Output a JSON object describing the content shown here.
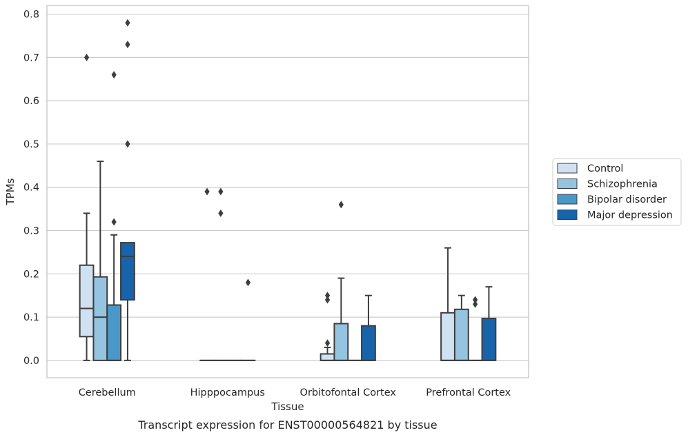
{
  "chart_data": {
    "type": "box",
    "caption": "Transcript expression for ENST00000564821 by tissue",
    "xlabel": "Tissue",
    "ylabel": "TPMs",
    "ylim": [
      -0.04,
      0.82
    ],
    "yticks": [
      0.0,
      0.1,
      0.2,
      0.3,
      0.4,
      0.5,
      0.6,
      0.7,
      0.8
    ],
    "ytick_labels": [
      "0.0",
      "0.1",
      "0.2",
      "0.3",
      "0.4",
      "0.5",
      "0.6",
      "0.7",
      "0.8"
    ],
    "grid": "horizontal",
    "legend_position": "right",
    "categories": [
      "Cerebellum",
      "Hipppocampus",
      "Orbitofontal Cortex",
      "Prefrontal Cortex"
    ],
    "series": [
      {
        "name": "Control",
        "color": "#d0e1f2",
        "boxes": [
          {
            "whisker_low": 0.0,
            "q1": 0.055,
            "median": 0.12,
            "q3": 0.22,
            "whisker_high": 0.34,
            "outliers": [
              0.7
            ]
          },
          {
            "whisker_low": 0.0,
            "q1": 0.0,
            "median": 0.0,
            "q3": 0.0,
            "whisker_high": 0.0,
            "outliers": [
              0.39
            ]
          },
          {
            "whisker_low": 0.0,
            "q1": 0.0,
            "median": 0.0,
            "q3": 0.015,
            "whisker_high": 0.03,
            "outliers": [
              0.04,
              0.14,
              0.15
            ]
          },
          {
            "whisker_low": 0.0,
            "q1": 0.0,
            "median": 0.0,
            "q3": 0.11,
            "whisker_high": 0.26,
            "outliers": []
          }
        ]
      },
      {
        "name": "Schizophrenia",
        "color": "#94c4df",
        "boxes": [
          {
            "whisker_low": 0.0,
            "q1": 0.0,
            "median": 0.1,
            "q3": 0.193,
            "whisker_high": 0.46,
            "outliers": []
          },
          {
            "whisker_low": 0.0,
            "q1": 0.0,
            "median": 0.0,
            "q3": 0.0,
            "whisker_high": 0.0,
            "outliers": [
              0.34,
              0.39
            ]
          },
          {
            "whisker_low": 0.0,
            "q1": 0.0,
            "median": 0.0,
            "q3": 0.085,
            "whisker_high": 0.19,
            "outliers": [
              0.36
            ]
          },
          {
            "whisker_low": 0.0,
            "q1": 0.0,
            "median": 0.0,
            "q3": 0.118,
            "whisker_high": 0.15,
            "outliers": []
          }
        ]
      },
      {
        "name": "Bipolar disorder",
        "color": "#4a98c9",
        "boxes": [
          {
            "whisker_low": 0.0,
            "q1": 0.0,
            "median": 0.0,
            "q3": 0.128,
            "whisker_high": 0.29,
            "outliers": [
              0.32,
              0.66
            ]
          },
          {
            "whisker_low": 0.0,
            "q1": 0.0,
            "median": 0.0,
            "q3": 0.0,
            "whisker_high": 0.0,
            "outliers": []
          },
          {
            "whisker_low": 0.0,
            "q1": 0.0,
            "median": 0.0,
            "q3": 0.0,
            "whisker_high": 0.0,
            "outliers": []
          },
          {
            "whisker_low": 0.0,
            "q1": 0.0,
            "median": 0.0,
            "q3": 0.0,
            "whisker_high": 0.0,
            "outliers": [
              0.13,
              0.14
            ]
          }
        ]
      },
      {
        "name": "Major depression",
        "color": "#1764ab",
        "boxes": [
          {
            "whisker_low": 0.0,
            "q1": 0.14,
            "median": 0.24,
            "q3": 0.272,
            "whisker_high": 0.272,
            "outliers": [
              0.5,
              0.73,
              0.78
            ]
          },
          {
            "whisker_low": 0.0,
            "q1": 0.0,
            "median": 0.0,
            "q3": 0.0,
            "whisker_high": 0.0,
            "outliers": [
              0.18
            ]
          },
          {
            "whisker_low": 0.0,
            "q1": 0.0,
            "median": 0.0,
            "q3": 0.08,
            "whisker_high": 0.15,
            "outliers": []
          },
          {
            "whisker_low": 0.0,
            "q1": 0.0,
            "median": 0.0,
            "q3": 0.097,
            "whisker_high": 0.17,
            "outliers": []
          }
        ]
      }
    ]
  }
}
